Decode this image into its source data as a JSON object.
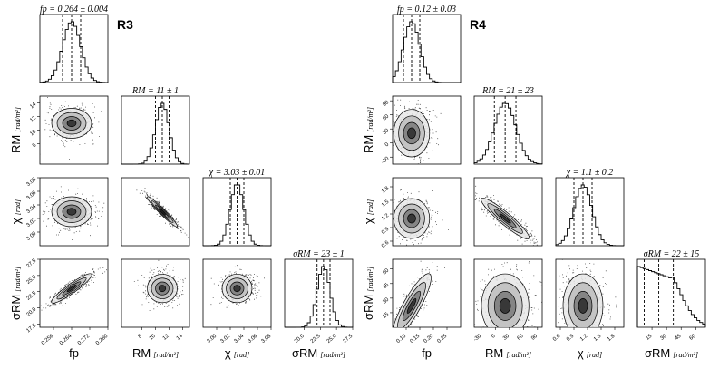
{
  "chart_data": [
    {
      "type": "corner",
      "label": "R3",
      "params": [
        {
          "key": "fp",
          "title": "fp = 0.264 ± 0.004",
          "xlabel": "fp",
          "xunit": "",
          "ylabel": "",
          "yunit": "",
          "mean": 0.264,
          "sd": 0.004,
          "q": [
            0.26,
            0.264,
            0.268
          ],
          "range": [
            0.25,
            0.28
          ],
          "ticks": [
            0.256,
            0.264,
            0.272,
            0.28
          ],
          "ticklabels": [
            "0.256",
            "0.264",
            "0.272",
            "0.280"
          ]
        },
        {
          "key": "RM",
          "title": "RM = 11 ± 1",
          "xlabel": "RM",
          "xunit": "[rad/m²]",
          "ylabel": "RM",
          "yunit": "[rad/m²]",
          "mean": 11,
          "sd": 1,
          "q": [
            10,
            11,
            12
          ],
          "range": [
            5,
            15
          ],
          "ticks": [
            8,
            10,
            12,
            14
          ],
          "ticklabels": [
            "8",
            "10",
            "12",
            "14"
          ],
          "yticklabels": [
            "8",
            "10",
            "12",
            "14"
          ]
        },
        {
          "key": "chi",
          "title": "χ = 3.03 ± 0.01",
          "xlabel": "χ",
          "xunit": "[rad]",
          "ylabel": "χ",
          "yunit": "[rad]",
          "mean": 3.03,
          "sd": 0.01,
          "q": [
            3.02,
            3.03,
            3.04
          ],
          "range": [
            2.98,
            3.08
          ],
          "ticks": [
            3.0,
            3.02,
            3.04,
            3.06,
            3.08
          ],
          "ticklabels": [
            "3.00",
            "3.02",
            "3.04",
            "3.06",
            "3.08"
          ],
          "yticklabels": [
            "3.00",
            "3.02",
            "3.04",
            "3.06",
            "3.08"
          ]
        },
        {
          "key": "sigma",
          "title": "σRM = 23 ± 1",
          "xlabel": "σRM",
          "xunit": "[rad/m²]",
          "ylabel": "σRM",
          "yunit": "[rad/m²]",
          "mean": 23,
          "sd": 1,
          "q": [
            22,
            23,
            24
          ],
          "range": [
            17,
            27.5
          ],
          "ticks": [
            20.0,
            22.5,
            25.0,
            27.5
          ],
          "ticklabels": [
            "20.0",
            "22.5",
            "25.0",
            "27.5"
          ],
          "yticklabels": [
            "17.5",
            "20.0",
            "22.5",
            "25.0",
            "27.5"
          ],
          "yticks": [
            17.5,
            20.0,
            22.5,
            25.0,
            27.5
          ]
        }
      ],
      "correlations": {
        "fp-RM": 0.0,
        "fp-chi": 0.0,
        "fp-sigma": 0.9,
        "RM-chi": -0.95,
        "RM-sigma": 0.0,
        "chi-sigma": 0.0
      }
    },
    {
      "type": "corner",
      "label": "R4",
      "params": [
        {
          "key": "fp",
          "title": "fp = 0.12 ± 0.03",
          "xlabel": "fp",
          "xunit": "",
          "ylabel": "",
          "yunit": "",
          "mean": 0.12,
          "sd": 0.03,
          "q": [
            0.09,
            0.12,
            0.15
          ],
          "range": [
            0.05,
            0.3
          ],
          "ticks": [
            0.1,
            0.15,
            0.2,
            0.25
          ],
          "ticklabels": [
            "0.10",
            "0.15",
            "0.20",
            "0.25"
          ]
        },
        {
          "key": "RM",
          "title": "RM = 21 ± 23",
          "xlabel": "RM",
          "xunit": "[rad/m²]",
          "ylabel": "RM",
          "yunit": "[rad/m²]",
          "mean": 21,
          "sd": 23,
          "q": [
            -2,
            21,
            44
          ],
          "range": [
            -45,
            100
          ],
          "ticks": [
            -30,
            0,
            30,
            60,
            90
          ],
          "ticklabels": [
            "-30",
            "0",
            "30",
            "60",
            "90"
          ],
          "yticklabels": [
            "-30",
            "0",
            "30",
            "60",
            "90"
          ]
        },
        {
          "key": "chi",
          "title": "χ = 1.1 ± 0.2",
          "xlabel": "χ",
          "xunit": "[rad]",
          "ylabel": "χ",
          "yunit": "[rad]",
          "mean": 1.1,
          "sd": 0.2,
          "q": [
            0.9,
            1.1,
            1.3
          ],
          "range": [
            0.5,
            2.0
          ],
          "ticks": [
            0.6,
            0.9,
            1.2,
            1.5,
            1.8
          ],
          "ticklabels": [
            "0.6",
            "0.9",
            "1.2",
            "1.5",
            "1.8"
          ],
          "yticklabels": [
            "0.6",
            "0.9",
            "1.2",
            "1.5",
            "1.8"
          ]
        },
        {
          "key": "sigma",
          "title": "σRM = 22 ± 15",
          "xlabel": "σRM",
          "xunit": "[rad/m²]",
          "ylabel": "σRM",
          "yunit": "[rad/m²]",
          "mean": 22,
          "sd": 15,
          "q": [
            7,
            22,
            37
          ],
          "range": [
            0,
            70
          ],
          "ticks": [
            15,
            30,
            45,
            60
          ],
          "ticklabels": [
            "15",
            "30",
            "45",
            "60"
          ],
          "yticklabels": [
            "15",
            "30",
            "45",
            "60"
          ],
          "yticks": [
            15,
            30,
            45,
            60
          ]
        }
      ],
      "correlations": {
        "fp-RM": 0.0,
        "fp-chi": 0.0,
        "fp-sigma": 0.85,
        "RM-chi": -0.9,
        "RM-sigma": 0.0,
        "chi-sigma": 0.0
      }
    }
  ]
}
